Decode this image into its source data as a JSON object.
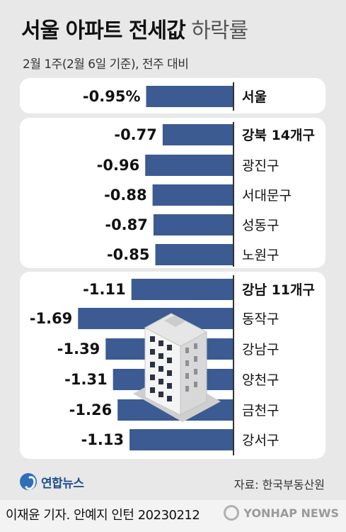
{
  "title_bold": "서울 아파트 전세값",
  "title_light": "하락률",
  "subtitle": "2월 1주(2월 6일 기준), 전주 대비",
  "colors": {
    "bar": "#3b5b92",
    "panel": "#ffffff",
    "background": "#e8e8e8",
    "separator": "#333333"
  },
  "chart_data": {
    "type": "bar",
    "orientation": "horizontal",
    "title": "서울 아파트 전세값 하락률",
    "subtitle": "2월 1주(2월 6일 기준), 전주 대비",
    "groups": [
      {
        "items": [
          {
            "label": "서울",
            "value": -0.95,
            "display": "-0.95%",
            "bold": true
          }
        ]
      },
      {
        "items": [
          {
            "label": "강북 14개구",
            "value": -0.77,
            "display": "-0.77",
            "bold": true
          },
          {
            "label": "광진구",
            "value": -0.96,
            "display": "-0.96",
            "bold": false
          },
          {
            "label": "서대문구",
            "value": -0.88,
            "display": "-0.88",
            "bold": false
          },
          {
            "label": "성동구",
            "value": -0.87,
            "display": "-0.87",
            "bold": false
          },
          {
            "label": "노원구",
            "value": -0.85,
            "display": "-0.85",
            "bold": false
          }
        ]
      },
      {
        "items": [
          {
            "label": "강남 11개구",
            "value": -1.11,
            "display": "-1.11",
            "bold": true
          },
          {
            "label": "동작구",
            "value": -1.69,
            "display": "-1.69",
            "bold": false
          },
          {
            "label": "강남구",
            "value": -1.39,
            "display": "-1.39",
            "bold": false
          },
          {
            "label": "양천구",
            "value": -1.31,
            "display": "-1.31",
            "bold": false
          },
          {
            "label": "금천구",
            "value": -1.26,
            "display": "-1.26",
            "bold": false
          },
          {
            "label": "강서구",
            "value": -1.13,
            "display": "-1.13",
            "bold": false
          }
        ]
      }
    ]
  },
  "logo_text": "연합뉴스",
  "source": "자료: 한국부동산원",
  "credit": "이재윤 기자. 안예지 인턴  20230212",
  "watermark": "YONHAP NEWS"
}
